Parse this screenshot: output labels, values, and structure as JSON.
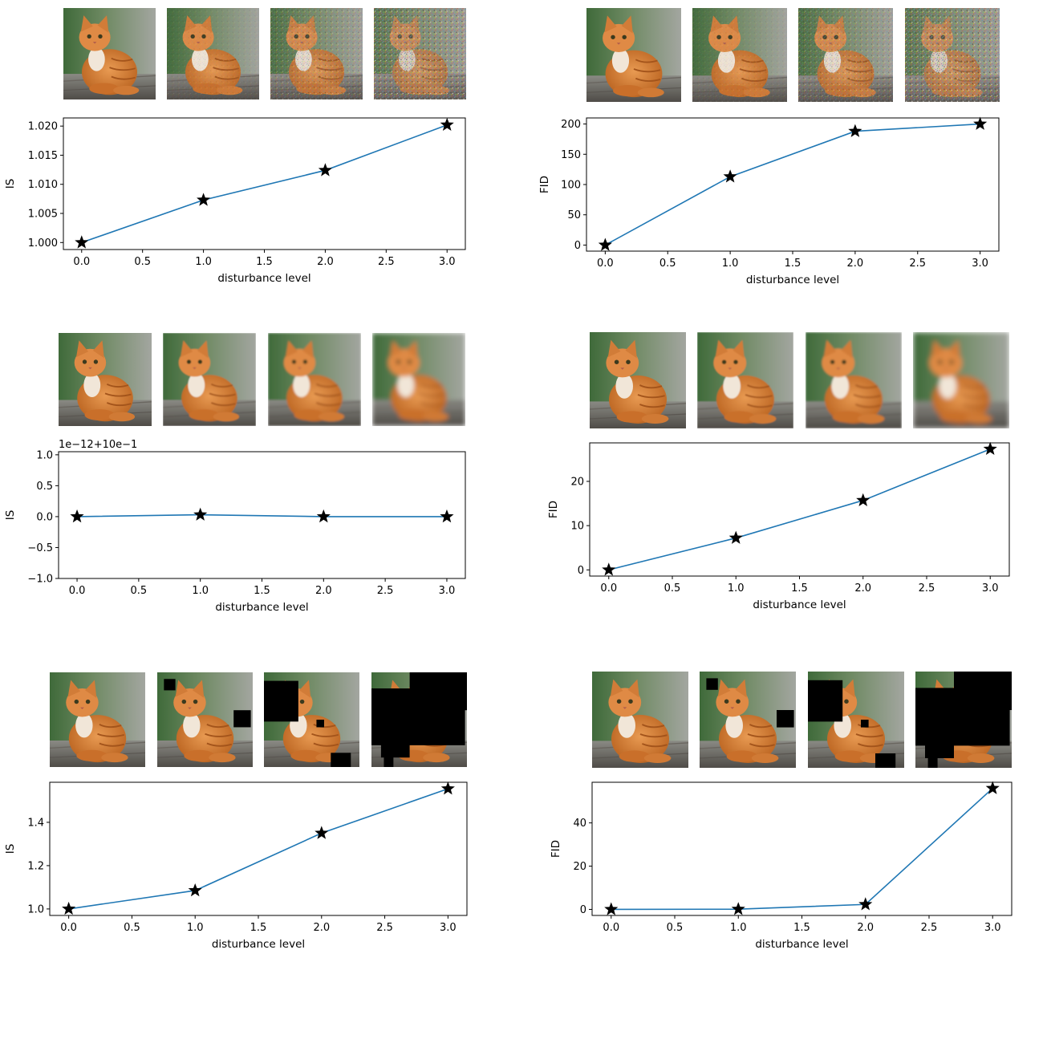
{
  "colors": {
    "line": "#1f77b4",
    "marker": "#000000",
    "axes": "#000000",
    "occlusion": "#000000"
  },
  "icons": {
    "marker": "star-marker-icon",
    "thumbnail": "cat-photo-icon"
  },
  "chart_data": [
    {
      "type": "line",
      "panel": "row-1-left",
      "disturbance": "noise",
      "image_levels": [
        0,
        0.12,
        0.4,
        0.85
      ],
      "x": [
        0,
        1,
        2,
        3
      ],
      "y": [
        1.0,
        1.0073,
        1.0124,
        1.0202
      ],
      "xlim": [
        -0.15,
        3.15
      ],
      "ylim": [
        0.9988,
        1.0214
      ],
      "xticks": [
        0,
        0.5,
        1,
        1.5,
        2,
        2.5,
        3
      ],
      "xtick_labels": [
        "0.0",
        "0.5",
        "1.0",
        "1.5",
        "2.0",
        "2.5",
        "3.0"
      ],
      "yticks": [
        1.0,
        1.005,
        1.01,
        1.015,
        1.02
      ],
      "ytick_labels": [
        "1.000",
        "1.005",
        "1.010",
        "1.015",
        "1.020"
      ],
      "xlabel": "disturbance level",
      "ylabel": "IS",
      "offset_text": "",
      "grid": false,
      "legend": "none"
    },
    {
      "type": "line",
      "panel": "row-1-right",
      "disturbance": "noise",
      "image_levels": [
        0,
        0.12,
        0.4,
        0.85
      ],
      "x": [
        0,
        1,
        2,
        3
      ],
      "y": [
        0,
        113,
        188,
        200
      ],
      "xlim": [
        -0.15,
        3.15
      ],
      "ylim": [
        -10,
        210
      ],
      "xticks": [
        0,
        0.5,
        1,
        1.5,
        2,
        2.5,
        3
      ],
      "xtick_labels": [
        "0.0",
        "0.5",
        "1.0",
        "1.5",
        "2.0",
        "2.5",
        "3.0"
      ],
      "yticks": [
        0,
        50,
        100,
        150,
        200
      ],
      "ytick_labels": [
        "0",
        "50",
        "100",
        "150",
        "200"
      ],
      "xlabel": "disturbance level",
      "ylabel": "FID",
      "offset_text": "",
      "grid": false,
      "legend": "none"
    },
    {
      "type": "line",
      "panel": "row-2-left",
      "disturbance": "blur",
      "image_levels": [
        0,
        0.6,
        1.2,
        2.6
      ],
      "x": [
        0,
        1,
        2,
        3
      ],
      "y": [
        0.0,
        0.03,
        0.0,
        0.0
      ],
      "xlim": [
        -0.15,
        3.15
      ],
      "ylim": [
        -1.0,
        1.05
      ],
      "xticks": [
        0,
        0.5,
        1,
        1.5,
        2,
        2.5,
        3
      ],
      "xtick_labels": [
        "0.0",
        "0.5",
        "1.0",
        "1.5",
        "2.0",
        "2.5",
        "3.0"
      ],
      "yticks": [
        -1.0,
        -0.5,
        0.0,
        0.5,
        1.0
      ],
      "ytick_labels": [
        "−1.0",
        "−0.5",
        "0.0",
        "0.5",
        "1.0"
      ],
      "xlabel": "disturbance level",
      "ylabel": "IS",
      "offset_text": "1e−12+10e−1",
      "grid": false,
      "legend": "none"
    },
    {
      "type": "line",
      "panel": "row-2-right",
      "disturbance": "blur",
      "image_levels": [
        0,
        0.6,
        1.2,
        2.6
      ],
      "x": [
        0,
        1,
        2,
        3
      ],
      "y": [
        0.0,
        7.2,
        15.7,
        27.3
      ],
      "xlim": [
        -0.15,
        3.15
      ],
      "ylim": [
        -1.4,
        28.7
      ],
      "xticks": [
        0,
        0.5,
        1,
        1.5,
        2,
        2.5,
        3
      ],
      "xtick_labels": [
        "0.0",
        "0.5",
        "1.0",
        "1.5",
        "2.0",
        "2.5",
        "3.0"
      ],
      "yticks": [
        0,
        10,
        20
      ],
      "ytick_labels": [
        "0",
        "10",
        "20"
      ],
      "xlabel": "disturbance level",
      "ylabel": "FID",
      "offset_text": "",
      "grid": false,
      "legend": "none"
    },
    {
      "type": "line",
      "panel": "row-3-left",
      "disturbance": "occlusion",
      "image_levels": [
        0,
        1,
        2,
        3
      ],
      "x": [
        0,
        1,
        2,
        3
      ],
      "y": [
        1.0,
        1.085,
        1.35,
        1.555
      ],
      "xlim": [
        -0.15,
        3.15
      ],
      "ylim": [
        0.97,
        1.585
      ],
      "xticks": [
        0,
        0.5,
        1,
        1.5,
        2,
        2.5,
        3
      ],
      "xtick_labels": [
        "0.0",
        "0.5",
        "1.0",
        "1.5",
        "2.0",
        "2.5",
        "3.0"
      ],
      "yticks": [
        1.0,
        1.2,
        1.4
      ],
      "ytick_labels": [
        "1.0",
        "1.2",
        "1.4"
      ],
      "xlabel": "disturbance level",
      "ylabel": "IS",
      "offset_text": "",
      "grid": false,
      "legend": "none"
    },
    {
      "type": "line",
      "panel": "row-3-right",
      "disturbance": "occlusion",
      "image_levels": [
        0,
        1,
        2,
        3
      ],
      "x": [
        0,
        1,
        2,
        3
      ],
      "y": [
        0.0,
        0.1,
        2.3,
        56.0
      ],
      "xlim": [
        -0.15,
        3.15
      ],
      "ylim": [
        -2.8,
        58.8
      ],
      "xticks": [
        0,
        0.5,
        1,
        1.5,
        2,
        2.5,
        3
      ],
      "xtick_labels": [
        "0.0",
        "0.5",
        "1.0",
        "1.5",
        "2.0",
        "2.5",
        "3.0"
      ],
      "yticks": [
        0,
        20,
        40
      ],
      "ytick_labels": [
        "0",
        "20",
        "40"
      ],
      "xlabel": "disturbance level",
      "ylabel": "FID",
      "offset_text": "",
      "grid": false,
      "legend": "none"
    }
  ]
}
